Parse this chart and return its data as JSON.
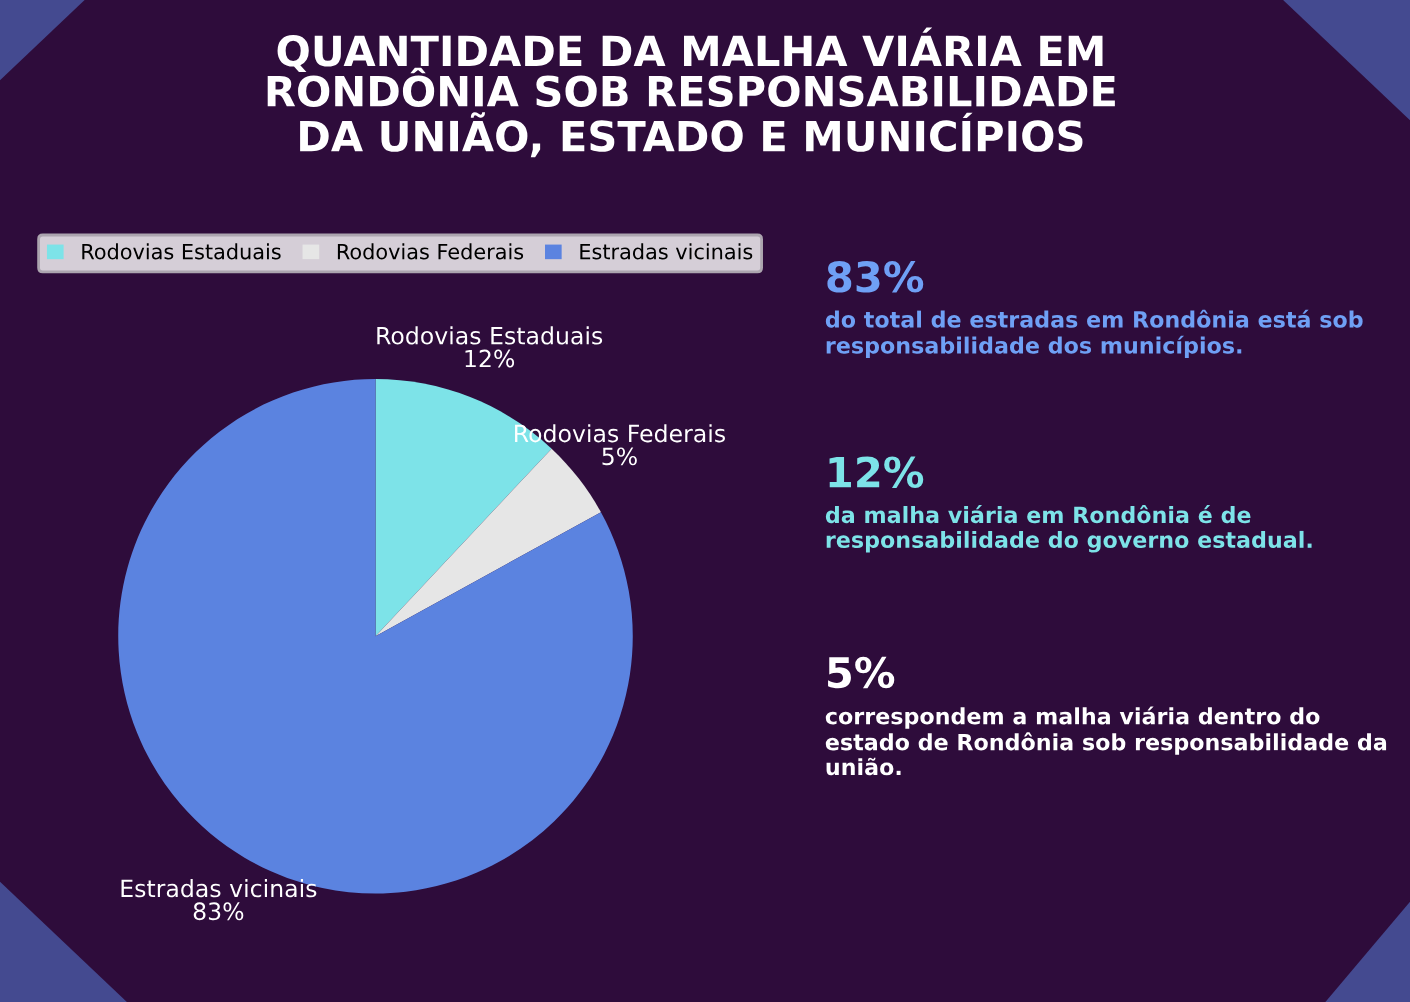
{
  "chart_data": {
    "type": "pie",
    "title": "QUANTIDADE DA MALHA VIÁRIA EM\nRONDÔNIA SOB RESPONSABILIDADE\nDA UNIÃO, ESTADO E MUNICÍPIOS",
    "categories": [
      "Rodovias Estaduais",
      "Rodovias Federais",
      "Estradas vicinais"
    ],
    "values": [
      12,
      5,
      83
    ],
    "value_labels": [
      "12%",
      "5%",
      "83%"
    ],
    "colors": [
      "#7de3e8",
      "#e6e6e6",
      "#5b83e0"
    ],
    "legend": "top left",
    "annotations": [
      "83%",
      "do total de estradas em Rondônia está sob responsabilidade dos municípios.",
      "12%",
      "da malha viária em Rondônia é de responsabilidade do governo estadual.",
      "5%",
      "correspondem a malha viária dentro do estado de Rondônia sob responsabilidade da união."
    ]
  }
}
